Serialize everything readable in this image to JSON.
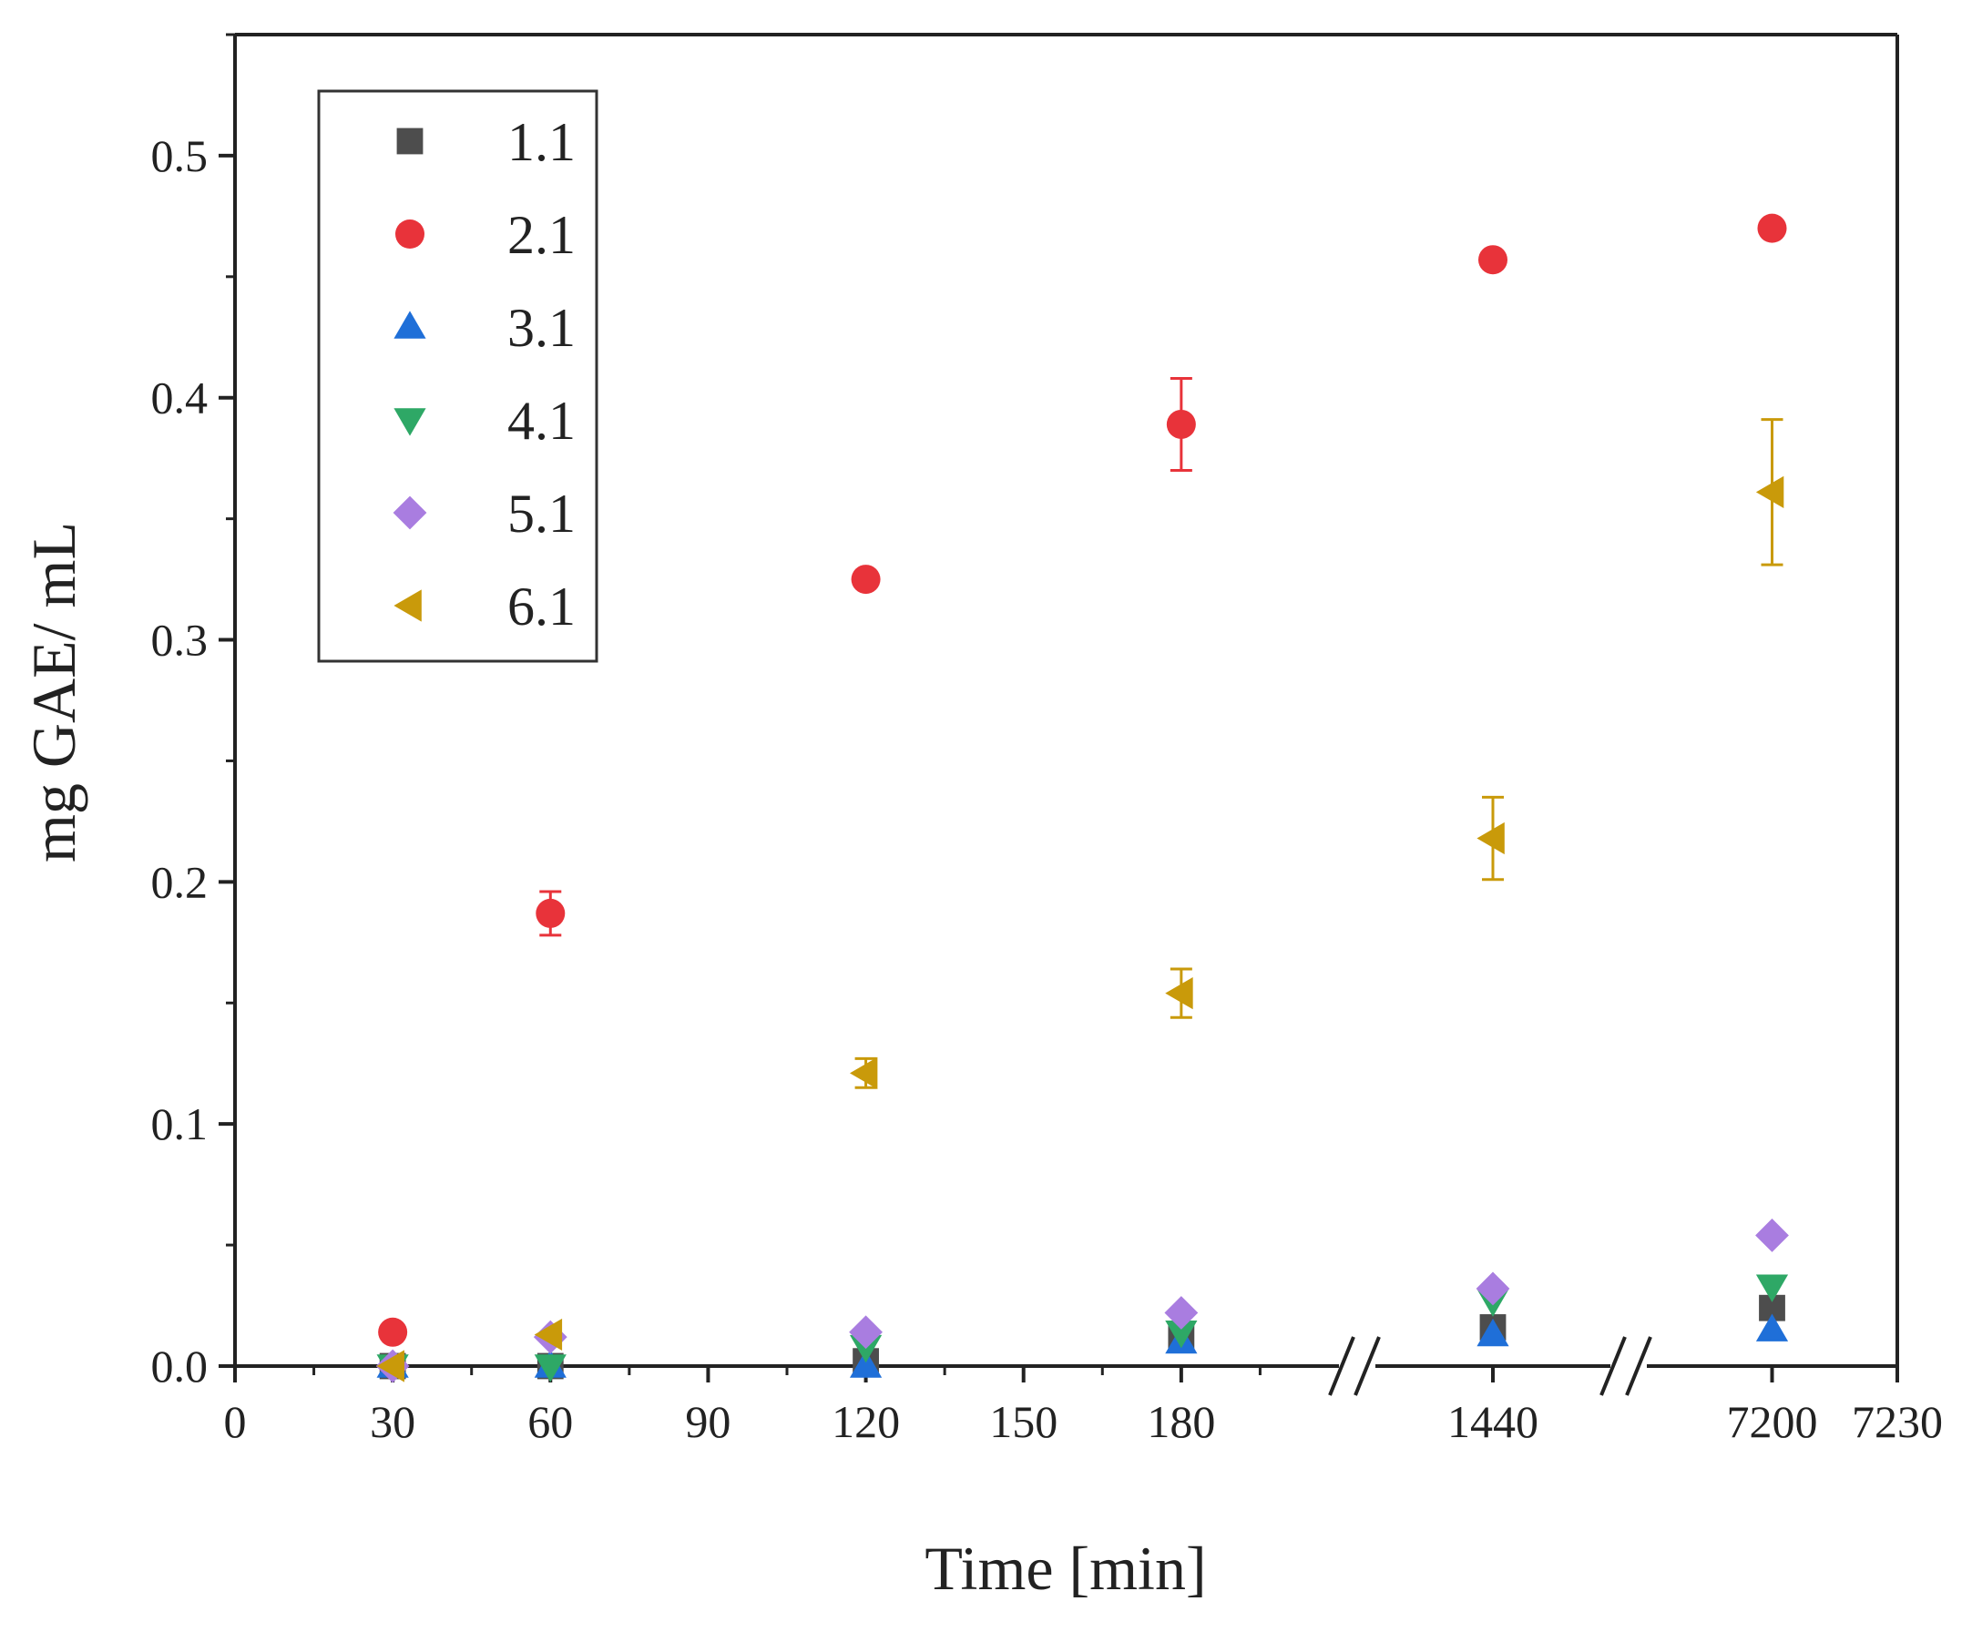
{
  "chart_data": {
    "type": "scatter",
    "title": "",
    "xlabel": "Time [min]",
    "ylabel": "mg GAE/ mL",
    "ylim": [
      0,
      0.55
    ],
    "x_axis_break": true,
    "x_segments": [
      {
        "range": [
          0,
          210
        ],
        "ticks": [
          0,
          30,
          60,
          90,
          120,
          150,
          180
        ]
      },
      {
        "range": [
          1400,
          1480
        ],
        "ticks": [
          1440
        ]
      },
      {
        "range": [
          7170,
          7230
        ],
        "ticks": [
          7200,
          7230
        ]
      }
    ],
    "x_tick_labels": [
      "0",
      "30",
      "60",
      "90",
      "120",
      "150",
      "180",
      "1440",
      "7200",
      "7230"
    ],
    "y_ticks": [
      0.0,
      0.1,
      0.2,
      0.3,
      0.4,
      0.5
    ],
    "y_tick_labels": [
      "0.0",
      "0.1",
      "0.2",
      "0.3",
      "0.4",
      "0.5"
    ],
    "legend_position": "top-left",
    "x": [
      30,
      60,
      120,
      180,
      1440,
      7200
    ],
    "series": [
      {
        "name": "1.1",
        "marker": "square",
        "color": "#4d4d4d",
        "values": [
          0.0,
          0.0,
          0.002,
          0.012,
          0.016,
          0.024
        ],
        "errors": [
          0,
          0,
          0,
          0,
          0,
          0
        ]
      },
      {
        "name": "2.1",
        "marker": "circle",
        "color": "#e8333a",
        "values": [
          0.014,
          0.187,
          0.325,
          0.389,
          0.457,
          0.47
        ],
        "errors": [
          0,
          0.009,
          0,
          0.019,
          0,
          0
        ]
      },
      {
        "name": "3.1",
        "marker": "triangle-up",
        "color": "#1f6fd8",
        "values": [
          0.0,
          0.0,
          0.0,
          0.01,
          0.013,
          0.015
        ],
        "errors": [
          0,
          0,
          0,
          0,
          0,
          0
        ]
      },
      {
        "name": "4.1",
        "marker": "triangle-down",
        "color": "#2ea866",
        "values": [
          0.0,
          0.0,
          0.008,
          0.014,
          0.027,
          0.033
        ],
        "errors": [
          0,
          0,
          0,
          0,
          0,
          0
        ]
      },
      {
        "name": "5.1",
        "marker": "diamond",
        "color": "#a97de0",
        "values": [
          0.0,
          0.012,
          0.014,
          0.022,
          0.032,
          0.054
        ],
        "errors": [
          0,
          0,
          0,
          0,
          0,
          0
        ]
      },
      {
        "name": "6.1",
        "marker": "triangle-left",
        "color": "#c99a0a",
        "values": [
          0.0,
          0.013,
          0.121,
          0.154,
          0.218,
          0.361
        ],
        "errors": [
          0,
          0,
          0.006,
          0.01,
          0.017,
          0.03
        ]
      }
    ]
  }
}
